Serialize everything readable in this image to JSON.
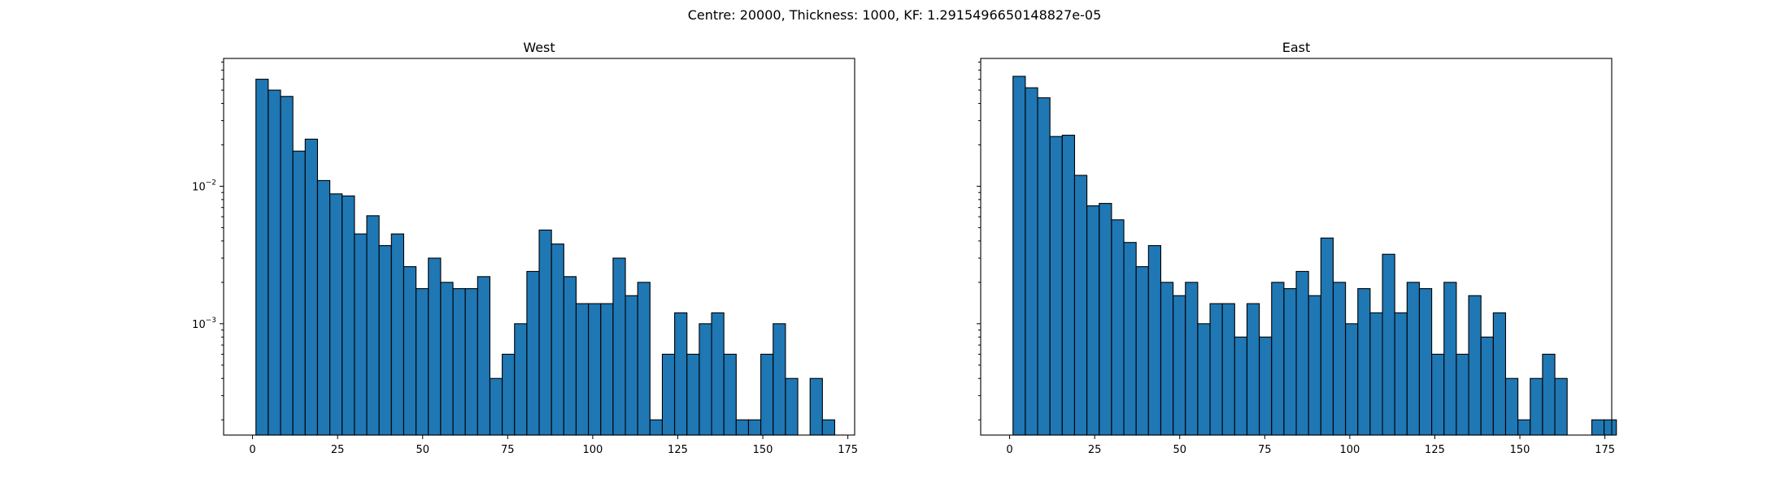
{
  "figure": {
    "suptitle": "Centre: 20000, Thickness: 1000, KF: 1.2915496650148827e-05"
  },
  "chart_data": [
    {
      "type": "bar",
      "title": "West",
      "xlabel": "",
      "ylabel": "",
      "yscale": "log",
      "xlim": [
        -8.5,
        177
      ],
      "ylim": [
        0.000155,
        0.085
      ],
      "xticks": [
        0,
        25,
        50,
        75,
        100,
        125,
        150,
        175
      ],
      "yticks": [
        {
          "value": 0.01,
          "base": "10",
          "exp": "−2"
        },
        {
          "value": 0.001,
          "base": "10",
          "exp": "−3"
        }
      ],
      "bin_start": 1,
      "bin_width": 3.62,
      "color": "#1f77b4",
      "edgecolor": "#000000",
      "grid": false,
      "values": [
        0.06,
        0.05,
        0.045,
        0.018,
        0.022,
        0.011,
        0.0088,
        0.0085,
        0.0045,
        0.0061,
        0.0037,
        0.0045,
        0.0026,
        0.0018,
        0.003,
        0.002,
        0.0018,
        0.0018,
        0.0022,
        0.0004,
        0.0006,
        0.001,
        0.0024,
        0.0048,
        0.0038,
        0.0022,
        0.0014,
        0.0014,
        0.0014,
        0.003,
        0.0016,
        0.002,
        0.0002,
        0.0006,
        0.0012,
        0.0006,
        0.001,
        0.0012,
        0.0006,
        0.0002,
        0.0002,
        0.0006,
        0.001,
        0.0004,
        0,
        0.0004,
        0.0002,
        0
      ]
    },
    {
      "type": "bar",
      "title": "East",
      "xlabel": "",
      "ylabel": "",
      "yscale": "log",
      "xlim": [
        -8.5,
        177
      ],
      "ylim": [
        0.000155,
        0.085
      ],
      "xticks": [
        0,
        25,
        50,
        75,
        100,
        125,
        150,
        175
      ],
      "yticks": [
        {
          "value": 0.01,
          "base": "",
          "exp": ""
        },
        {
          "value": 0.001,
          "base": "",
          "exp": ""
        }
      ],
      "bin_start": 1,
      "bin_width": 3.62,
      "color": "#1f77b4",
      "edgecolor": "#000000",
      "grid": false,
      "values": [
        0.063,
        0.052,
        0.044,
        0.023,
        0.0235,
        0.012,
        0.0072,
        0.0075,
        0.0057,
        0.0039,
        0.0026,
        0.0037,
        0.002,
        0.0016,
        0.002,
        0.001,
        0.0014,
        0.0014,
        0.0008,
        0.0014,
        0.0008,
        0.002,
        0.0018,
        0.0024,
        0.0016,
        0.0042,
        0.002,
        0.001,
        0.0018,
        0.0012,
        0.0032,
        0.0012,
        0.002,
        0.0018,
        0.0006,
        0.002,
        0.0006,
        0.0016,
        0.0008,
        0.0012,
        0.0004,
        0.0002,
        0.0004,
        0.0006,
        0.0004,
        0,
        0,
        0.0002,
        0.0002
      ]
    }
  ]
}
